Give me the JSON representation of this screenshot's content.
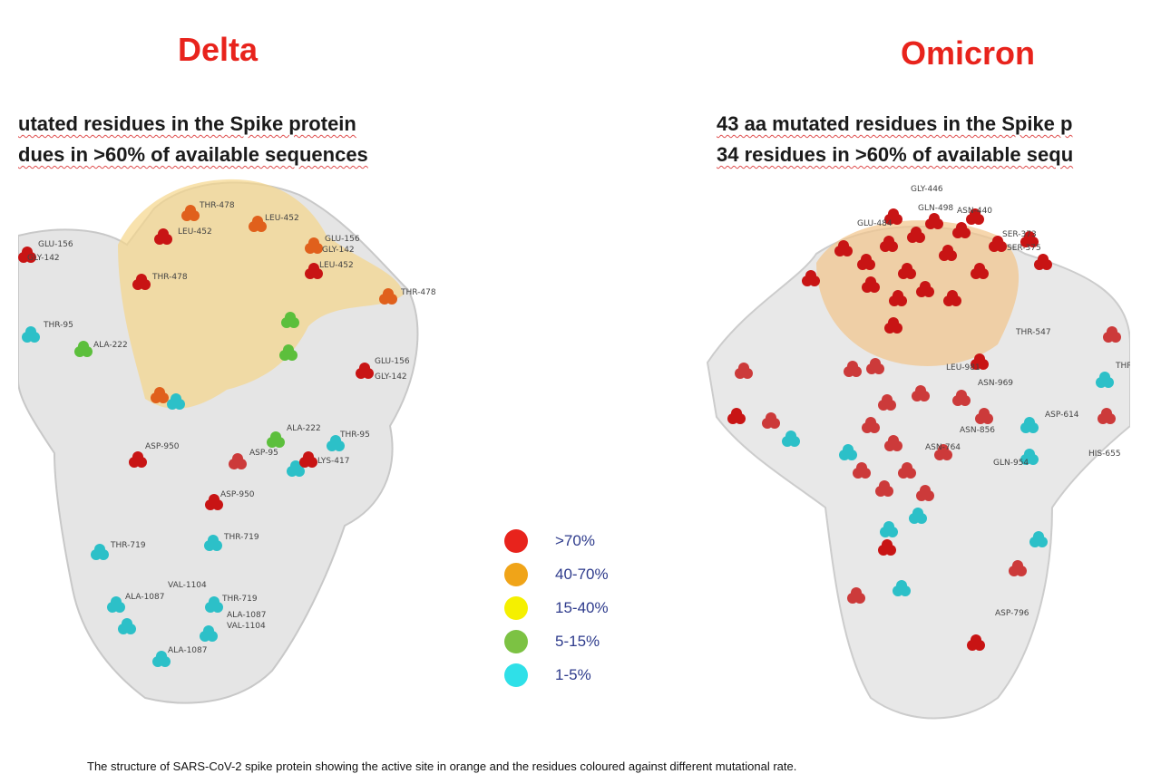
{
  "panels": [
    {
      "title": "Delta",
      "lines": [
        "utated residues in the Spike protein",
        "dues in >60% of available sequences"
      ],
      "residue_labels": [
        "THR-478",
        "LEU-452",
        "LEU-452",
        "GLU-156",
        "GLY-142",
        "GLU-156",
        "GLY-142",
        "LEU-452",
        "THR-478",
        "THR-478",
        "THR-95",
        "ALA-222",
        "GLU-156",
        "GLY-142",
        "ALA-222",
        "THR-95",
        "ASP-950",
        "ASP-95",
        "LYS-417",
        "ASP-950",
        "THR-719",
        "THR-719",
        "VAL-1104",
        "ALA-1087",
        "THR-719",
        "ALA-1087",
        "VAL-1104",
        "ALA-1087"
      ]
    },
    {
      "title": "Omicron",
      "lines": [
        "43 aa mutated residues in the Spike p",
        "34 residues in >60% of available sequ"
      ],
      "residue_labels": [
        "GLY-446",
        "GLN-498",
        "ASN-440",
        "GLU-484",
        "SER-373",
        "SER-375",
        "THR-547",
        "LEU-981",
        "ASN-969",
        "ASP-614",
        "ASN-856",
        "ASN-764",
        "GLN-954",
        "HIS-655",
        "THR",
        "ASP-796"
      ]
    }
  ],
  "legend": [
    {
      "label": ">70%",
      "color": "#e8231c"
    },
    {
      "label": "40-70%",
      "color": "#f0a418"
    },
    {
      "label": "15-40%",
      "color": "#f5f000"
    },
    {
      "label": "5-15%",
      "color": "#7cc243"
    },
    {
      "label": "1-5%",
      "color": "#2fe0e8"
    }
  ],
  "colors": {
    "active_site": "#f5d58a",
    "protein": "#d9d9d9"
  },
  "caption": "The structure of SARS-CoV-2 spike protein showing the active site in orange and the residues coloured against different mutational rate."
}
